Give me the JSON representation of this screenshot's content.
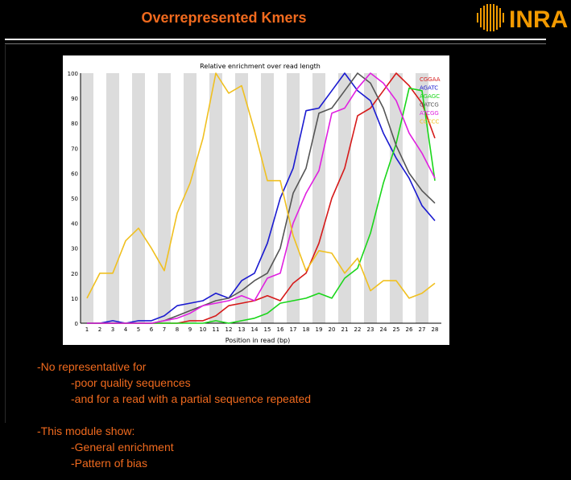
{
  "slide": {
    "title": "Overrepresented Kmers",
    "logo_text": "INRA",
    "colors": {
      "title": "#f06a1e",
      "text": "#f06a1e",
      "background": "#000000",
      "logo_orange": "#f39a00"
    }
  },
  "body": {
    "block1": {
      "heading": "-No representative for",
      "items": [
        "-poor quality sequences",
        "-and for a read with a partial sequence repeated"
      ]
    },
    "block2": {
      "heading": "-This module show:",
      "items": [
        "-General enrichment",
        "-Pattern of bias"
      ]
    }
  },
  "chart_data": {
    "type": "line",
    "title": "Relative enrichment over read length",
    "xlabel": "Position in read (bp)",
    "ylabel": "",
    "x": [
      1,
      2,
      3,
      4,
      5,
      6,
      7,
      8,
      9,
      10,
      11,
      12,
      13,
      14,
      15,
      16,
      17,
      18,
      19,
      20,
      21,
      22,
      23,
      24,
      25,
      26,
      27,
      28
    ],
    "xlim": [
      1,
      28
    ],
    "ylim": [
      0,
      100
    ],
    "yticks": [
      0,
      10,
      20,
      30,
      40,
      50,
      60,
      70,
      80,
      90,
      100
    ],
    "grid": "alternating vertical bands",
    "legend_position": "top-right",
    "series": [
      {
        "name": "CGGAA",
        "color": "#d61a1a",
        "values": [
          0,
          0,
          0,
          0,
          0,
          0,
          0,
          0,
          1,
          1,
          3,
          7,
          8,
          9,
          11,
          9,
          16,
          20,
          32,
          50,
          62,
          83,
          86,
          93,
          100,
          95,
          88,
          74
        ]
      },
      {
        "name": "AGATC",
        "color": "#1a1ad0",
        "values": [
          0,
          0,
          1,
          0,
          1,
          1,
          3,
          7,
          8,
          9,
          12,
          10,
          17,
          20,
          32,
          50,
          62,
          85,
          86,
          93,
          100,
          93,
          89,
          76,
          66,
          58,
          47,
          41
        ]
      },
      {
        "name": "AGAGC",
        "color": "#1ad61a",
        "values": [
          0,
          0,
          0,
          0,
          0,
          0,
          0,
          0,
          0,
          0,
          1,
          0,
          1,
          2,
          4,
          8,
          9,
          10,
          12,
          10,
          18,
          22,
          36,
          56,
          72,
          94,
          93,
          57
        ]
      },
      {
        "name": "GATCG",
        "color": "#555555",
        "values": [
          0,
          0,
          0,
          0,
          0,
          0,
          1,
          3,
          5,
          7,
          9,
          10,
          13,
          17,
          20,
          30,
          52,
          62,
          84,
          86,
          93,
          100,
          96,
          86,
          71,
          60,
          53,
          48
        ]
      },
      {
        "name": "ATCGG",
        "color": "#e020e0",
        "values": [
          0,
          0,
          0,
          0,
          0,
          0,
          1,
          2,
          4,
          7,
          8,
          9,
          11,
          9,
          18,
          20,
          40,
          52,
          61,
          84,
          86,
          94,
          100,
          96,
          89,
          76,
          68,
          58
        ]
      },
      {
        "name": "CCCCC",
        "color": "#f0c020",
        "values": [
          10,
          20,
          20,
          33,
          38,
          30,
          21,
          44,
          56,
          74,
          100,
          92,
          95,
          77,
          57,
          57,
          35,
          21,
          29,
          28,
          20,
          26,
          13,
          17,
          17,
          10,
          12,
          16
        ]
      }
    ]
  }
}
